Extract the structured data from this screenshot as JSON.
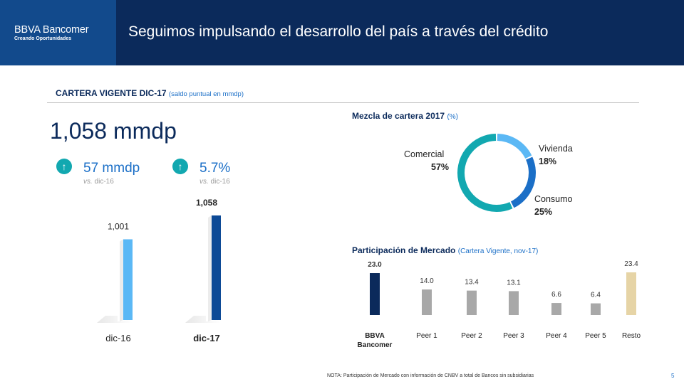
{
  "header": {
    "brand": "BBVA Bancomer",
    "tagline": "Creando Oportunidades",
    "title": "Seguimos impulsando el desarrollo del país a través del crédito"
  },
  "section": {
    "title": "CARTERA VIGENTE DIC-17",
    "subtitle": "(saldo puntual en mmdp)"
  },
  "headline": {
    "value": "1,058 mmdp"
  },
  "kpis": [
    {
      "value": "57 mmdp",
      "prefix": "vs.",
      "suffix": " dic-16"
    },
    {
      "value": "5.7%",
      "prefix": "vs.",
      "suffix": " dic-16"
    }
  ],
  "colors": {
    "navy": "#0b2a5b",
    "blue": "#1b6fc7",
    "light_blue": "#5bb8f5",
    "dark_blue": "#0d4a96",
    "teal": "#12a8b0",
    "gray": "#a8a8a8",
    "sand": "#e6d4a6"
  },
  "chart_data": [
    {
      "type": "bar",
      "title": "",
      "categories": [
        "dic-16",
        "dic-17"
      ],
      "values": [
        1001,
        1058
      ],
      "value_labels": [
        "1,001",
        "1,058"
      ],
      "ylim": [
        0,
        1100
      ]
    },
    {
      "type": "pie",
      "title": "Mezcla de cartera 2017",
      "subtitle": "(%)",
      "slices": [
        {
          "label": "Vivienda",
          "value": 18,
          "display": "18%"
        },
        {
          "label": "Consumo",
          "value": 25,
          "display": "25%"
        },
        {
          "label": "Comercial",
          "value": 57,
          "display": "57%"
        }
      ]
    },
    {
      "type": "bar",
      "title": "Participación de Mercado",
      "subtitle": "(Cartera Vigente, nov-17)",
      "categories": [
        "BBVA Bancomer",
        "Peer 1",
        "Peer 2",
        "Peer 3",
        "Peer 4",
        "Peer 5",
        "Resto"
      ],
      "values": [
        23.0,
        14.0,
        13.4,
        13.1,
        6.6,
        6.4,
        23.4
      ],
      "value_labels": [
        "23.0",
        "14.0",
        "13.4",
        "13.1",
        "6.6",
        "6.4",
        "23.4"
      ],
      "ylim": [
        0,
        25
      ]
    }
  ],
  "footer": {
    "note": "NOTA: Participación de Mercado con información de CNBV a total de Bancos sin subsidiarias",
    "page": "5"
  }
}
